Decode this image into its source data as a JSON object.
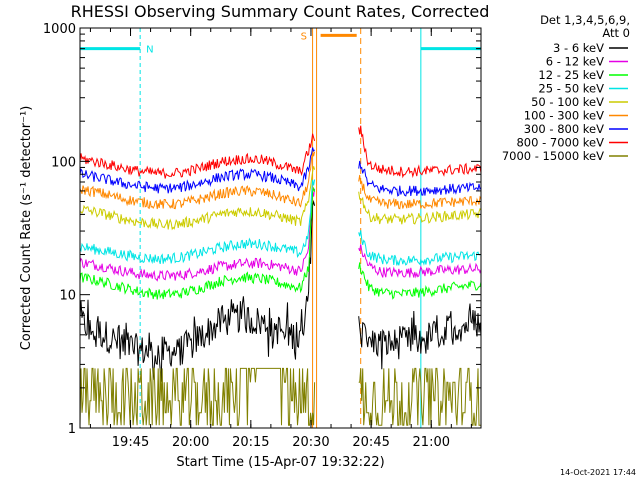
{
  "chart_data": {
    "type": "line",
    "title": "RHESSI Observing Summary Count Rates, Corrected",
    "xlabel": "Start Time (15-Apr-07 19:32:22)",
    "ylabel": "Corrected Count Rate (s⁻¹ detector⁻¹)",
    "yscale": "log",
    "ylim": [
      1,
      1000
    ],
    "xlim": [
      0,
      100
    ],
    "x_ticks": [
      "19:45",
      "20:00",
      "20:15",
      "20:30",
      "20:45",
      "21:00"
    ],
    "x_tick_minutes": [
      12.6,
      27.6,
      42.6,
      57.6,
      72.6,
      87.6
    ],
    "y_ticks": [
      "1",
      "10",
      "100",
      "1000"
    ],
    "legend_header": [
      "Det 1,3,4,5,6,9,",
      "Att 0"
    ],
    "footer_date": "14-Oct-2021 17:44",
    "markers": {
      "N": {
        "label": "N",
        "color": "#00e5e5",
        "bars": [
          [
            0,
            15
          ],
          [
            85,
            100
          ]
        ],
        "level": 700
      },
      "S": {
        "label": "S",
        "color": "#ff8800",
        "bars": [
          [
            60,
            69
          ]
        ],
        "level": 880
      }
    },
    "attenuator_gap": [
      58,
      70
    ],
    "series": [
      {
        "name": "3 - 6 keV",
        "color": "#000000",
        "x": [
          0,
          5,
          10,
          15,
          20,
          25,
          30,
          35,
          40,
          45,
          50,
          55,
          57,
          58,
          70,
          72,
          75,
          80,
          85,
          90,
          95,
          100
        ],
        "values": [
          6.2,
          5.2,
          4.3,
          3.8,
          3.7,
          3.8,
          4.8,
          6.2,
          6.8,
          6.2,
          5.4,
          4.7,
          10,
          50,
          5.2,
          4.5,
          4.3,
          4.3,
          4.6,
          5.2,
          5.8,
          6.3
        ]
      },
      {
        "name": "6 - 12 keV",
        "color": "#e500e5",
        "x": [
          0,
          5,
          10,
          15,
          20,
          25,
          30,
          35,
          40,
          45,
          50,
          55,
          57,
          58,
          70,
          72,
          75,
          80,
          85,
          90,
          95,
          100
        ],
        "values": [
          17.5,
          16.5,
          15.2,
          14.2,
          13.8,
          14,
          15,
          16.2,
          17,
          17.2,
          16.3,
          15,
          22,
          60,
          22,
          16.5,
          14.8,
          14.6,
          14.8,
          15.2,
          15.4,
          15.6
        ]
      },
      {
        "name": "12 - 25 keV",
        "color": "#00ff00",
        "x": [
          0,
          5,
          10,
          15,
          20,
          25,
          30,
          35,
          40,
          45,
          50,
          55,
          57,
          58,
          70,
          72,
          75,
          80,
          85,
          90,
          95,
          100
        ],
        "values": [
          13.5,
          12.6,
          11.5,
          10.5,
          10,
          10.2,
          11.2,
          12.6,
          13.5,
          13.2,
          12.2,
          11.2,
          16,
          60,
          16,
          11.3,
          10.4,
          10.1,
          10.4,
          11,
          11.5,
          12
        ]
      },
      {
        "name": "25 - 50 keV",
        "color": "#00e5e5",
        "x": [
          0,
          5,
          10,
          15,
          20,
          25,
          30,
          35,
          40,
          45,
          50,
          55,
          57,
          58,
          70,
          72,
          75,
          80,
          85,
          90,
          95,
          100
        ],
        "values": [
          23,
          21.5,
          20.2,
          19,
          18.5,
          19,
          20.5,
          22.5,
          24,
          24,
          22.5,
          20.5,
          28,
          70,
          28,
          20,
          18.5,
          18,
          18.3,
          18.8,
          19.3,
          19.8
        ]
      },
      {
        "name": "50 - 100 keV",
        "color": "#cccc00",
        "x": [
          0,
          5,
          10,
          15,
          20,
          25,
          30,
          35,
          40,
          45,
          50,
          55,
          57,
          58,
          70,
          72,
          75,
          80,
          85,
          90,
          95,
          100
        ],
        "values": [
          44,
          41,
          37.5,
          35,
          33.5,
          34,
          36.5,
          40,
          42.5,
          41.5,
          38.5,
          35,
          50,
          90,
          55,
          39,
          37,
          36.5,
          37.5,
          38.5,
          39.5,
          40.5
        ]
      },
      {
        "name": "100 - 300 keV",
        "color": "#ff8800",
        "x": [
          0,
          5,
          10,
          15,
          20,
          25,
          30,
          35,
          40,
          45,
          50,
          55,
          57,
          58,
          70,
          72,
          75,
          80,
          85,
          90,
          95,
          100
        ],
        "values": [
          62,
          58,
          53,
          49.5,
          47.5,
          48,
          52,
          57,
          60,
          59,
          54,
          48,
          70,
          110,
          72,
          51,
          48.5,
          47.5,
          48,
          49,
          50,
          51
        ]
      },
      {
        "name": "300 - 800 keV",
        "color": "#0000ff",
        "x": [
          0,
          5,
          10,
          15,
          20,
          25,
          30,
          35,
          40,
          45,
          50,
          55,
          57,
          58,
          70,
          72,
          75,
          80,
          85,
          90,
          95,
          100
        ],
        "values": [
          80,
          75,
          69,
          65,
          62.5,
          63.5,
          69,
          76,
          80,
          79,
          72,
          64,
          88,
          120,
          95,
          67,
          62,
          60,
          60.5,
          61.5,
          62.5,
          63.5
        ]
      },
      {
        "name": "800 - 7000 keV",
        "color": "#ff0000",
        "x": [
          0,
          5,
          10,
          15,
          20,
          25,
          30,
          35,
          40,
          45,
          50,
          55,
          57,
          58,
          70,
          72,
          75,
          80,
          85,
          90,
          95,
          100
        ],
        "values": [
          105,
          98,
          90,
          84,
          81,
          82,
          89,
          99,
          104,
          103,
          94,
          83,
          120,
          150,
          170,
          95,
          87,
          84,
          84.5,
          85.5,
          87,
          88
        ]
      },
      {
        "name": "7000 - 15000 keV",
        "color": "#808000",
        "x": [
          0,
          5,
          10,
          15,
          20,
          25,
          30,
          35,
          40,
          45,
          50,
          55,
          57,
          58,
          70,
          72,
          75,
          80,
          85,
          90,
          95,
          100
        ],
        "values": [
          2.2,
          1.9,
          1.7,
          1.6,
          1.5,
          1.6,
          2,
          2.4,
          2.6,
          2.4,
          2.1,
          1.8,
          1.7,
          1.7,
          1.7,
          1.6,
          1.6,
          1.7,
          1.8,
          1.9,
          2,
          2.1
        ]
      }
    ]
  }
}
